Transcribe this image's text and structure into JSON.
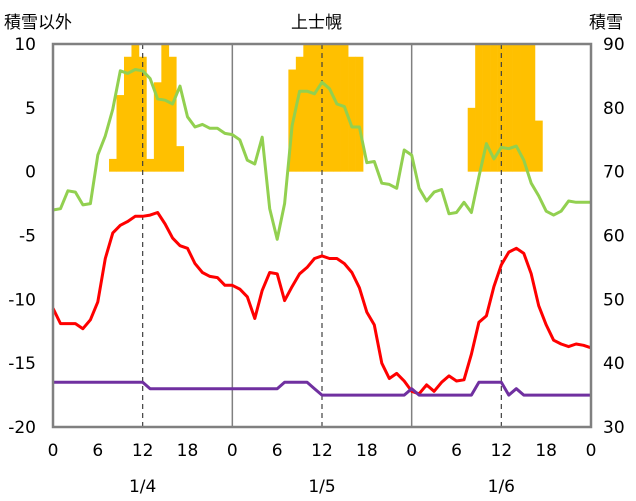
{
  "chart_data": {
    "type": "line",
    "title": "上士幌",
    "left_axis_title": "積雪以外",
    "right_axis_title": "積雪",
    "ylim_left": [
      -20,
      10
    ],
    "ylim_right": [
      30,
      90
    ],
    "y_ticks_left": [
      "10",
      "5",
      "0",
      "-5",
      "-10",
      "-15",
      "-20"
    ],
    "y_ticks_right": [
      "90",
      "80",
      "70",
      "60",
      "50",
      "40",
      "30"
    ],
    "x_tick_labels": [
      "0",
      "6",
      "12",
      "18",
      "0",
      "6",
      "12",
      "18",
      "0",
      "6",
      "12",
      "18",
      "0"
    ],
    "date_labels": [
      "1/4",
      "1/5",
      "1/6"
    ],
    "x_unit": "hour",
    "xlim": [
      0,
      72
    ],
    "grid": "vertical solid lines at each day boundary, dashed at noon",
    "series": [
      {
        "axis": "left",
        "type": "bar",
        "color": "#FFC000",
        "x": [
          8,
          9,
          10,
          11,
          12,
          13,
          14,
          15,
          16,
          17,
          32,
          33,
          34,
          35,
          36,
          37,
          38,
          39,
          40,
          41,
          56,
          57,
          58,
          59,
          60,
          61,
          62,
          63,
          64,
          65
        ],
        "values": [
          1,
          6,
          9,
          10,
          9,
          1,
          7,
          10,
          9,
          2,
          8,
          9,
          10,
          10,
          10,
          10,
          10,
          10,
          9,
          9,
          5,
          10,
          10,
          10,
          10,
          10,
          10,
          10,
          10,
          4
        ]
      },
      {
        "axis": "left",
        "type": "line",
        "color": "#92D050",
        "x": [
          0,
          1,
          2,
          3,
          4,
          5,
          6,
          7,
          8,
          9,
          10,
          11,
          12,
          13,
          14,
          15,
          16,
          17,
          18,
          19,
          20,
          21,
          22,
          23,
          24,
          25,
          26,
          27,
          28,
          29,
          30,
          31,
          32,
          33,
          34,
          35,
          36,
          37,
          38,
          39,
          40,
          41,
          42,
          43,
          44,
          45,
          46,
          47,
          48,
          49,
          50,
          51,
          52,
          53,
          54,
          55,
          56,
          57,
          58,
          59,
          60,
          61,
          62,
          63,
          64,
          65,
          66,
          67,
          68,
          69,
          70,
          71,
          72
        ],
        "values": [
          -3.0,
          -2.9,
          -1.5,
          -1.6,
          -2.6,
          -2.5,
          1.3,
          2.8,
          4.9,
          7.9,
          7.7,
          8.0,
          7.9,
          7.3,
          5.7,
          5.6,
          5.3,
          6.7,
          4.3,
          3.5,
          3.7,
          3.4,
          3.4,
          3.0,
          2.9,
          2.5,
          0.9,
          0.6,
          2.7,
          -2.9,
          -5.3,
          -2.5,
          3.6,
          6.3,
          6.3,
          6.1,
          7.0,
          6.5,
          5.3,
          5.1,
          3.5,
          3.5,
          0.7,
          0.8,
          -0.9,
          -1.0,
          -1.3,
          1.7,
          1.3,
          -1.3,
          -2.3,
          -1.6,
          -1.4,
          -3.3,
          -3.2,
          -2.4,
          -3.2,
          -0.4,
          2.2,
          1.0,
          1.9,
          1.8,
          2.0,
          0.9,
          -0.9,
          -1.9,
          -3.1,
          -3.4,
          -3.1,
          -2.3,
          -2.4,
          -2.4,
          -2.4
        ]
      },
      {
        "axis": "left",
        "type": "line",
        "color": "#FF0000",
        "x": [
          0,
          1,
          2,
          3,
          4,
          5,
          6,
          7,
          8,
          9,
          10,
          11,
          12,
          13,
          14,
          15,
          16,
          17,
          18,
          19,
          20,
          21,
          22,
          23,
          24,
          25,
          26,
          27,
          28,
          29,
          30,
          31,
          32,
          33,
          34,
          35,
          36,
          37,
          38,
          39,
          40,
          41,
          42,
          43,
          44,
          45,
          46,
          47,
          48,
          49,
          50,
          51,
          52,
          53,
          54,
          55,
          56,
          57,
          58,
          59,
          60,
          61,
          62,
          63,
          64,
          65,
          66,
          67,
          68,
          69,
          70,
          71,
          72
        ],
        "values": [
          -10.7,
          -11.9,
          -11.9,
          -11.9,
          -12.3,
          -11.6,
          -10.2,
          -6.8,
          -4.8,
          -4.2,
          -3.9,
          -3.5,
          -3.5,
          -3.4,
          -3.2,
          -4.1,
          -5.2,
          -5.8,
          -6.0,
          -7.2,
          -7.9,
          -8.2,
          -8.3,
          -8.9,
          -8.9,
          -9.2,
          -9.8,
          -11.5,
          -9.3,
          -7.9,
          -8.0,
          -10.1,
          -9.0,
          -8.0,
          -7.5,
          -6.8,
          -6.6,
          -6.8,
          -6.8,
          -7.2,
          -7.9,
          -9.1,
          -11.0,
          -12.0,
          -15.0,
          -16.2,
          -15.8,
          -16.4,
          -17.2,
          -17.4,
          -16.7,
          -17.2,
          -16.5,
          -16.0,
          -16.4,
          -16.3,
          -14.3,
          -11.8,
          -11.3,
          -9.0,
          -7.3,
          -6.3,
          -6.0,
          -6.4,
          -8.0,
          -10.5,
          -12.0,
          -13.2,
          -13.5,
          -13.7,
          -13.5,
          -13.6,
          -13.8
        ]
      },
      {
        "axis": "left",
        "type": "line",
        "color": "#7030A0",
        "x": [
          0,
          6,
          12,
          13,
          18,
          24,
          30,
          31,
          34,
          35,
          36,
          40,
          44,
          47,
          48,
          49,
          50,
          52,
          54,
          56,
          57,
          60,
          61,
          62,
          63,
          64,
          66,
          72
        ],
        "values": [
          -16.5,
          -16.5,
          -16.5,
          -17.0,
          -17.0,
          -17.0,
          -17.0,
          -16.5,
          -16.5,
          -17.0,
          -17.5,
          -17.5,
          -17.5,
          -17.5,
          -17.0,
          -17.5,
          -17.5,
          -17.5,
          -17.5,
          -17.5,
          -16.5,
          -16.5,
          -17.5,
          -17.0,
          -17.5,
          -17.5,
          -17.5,
          -17.5
        ]
      }
    ]
  }
}
